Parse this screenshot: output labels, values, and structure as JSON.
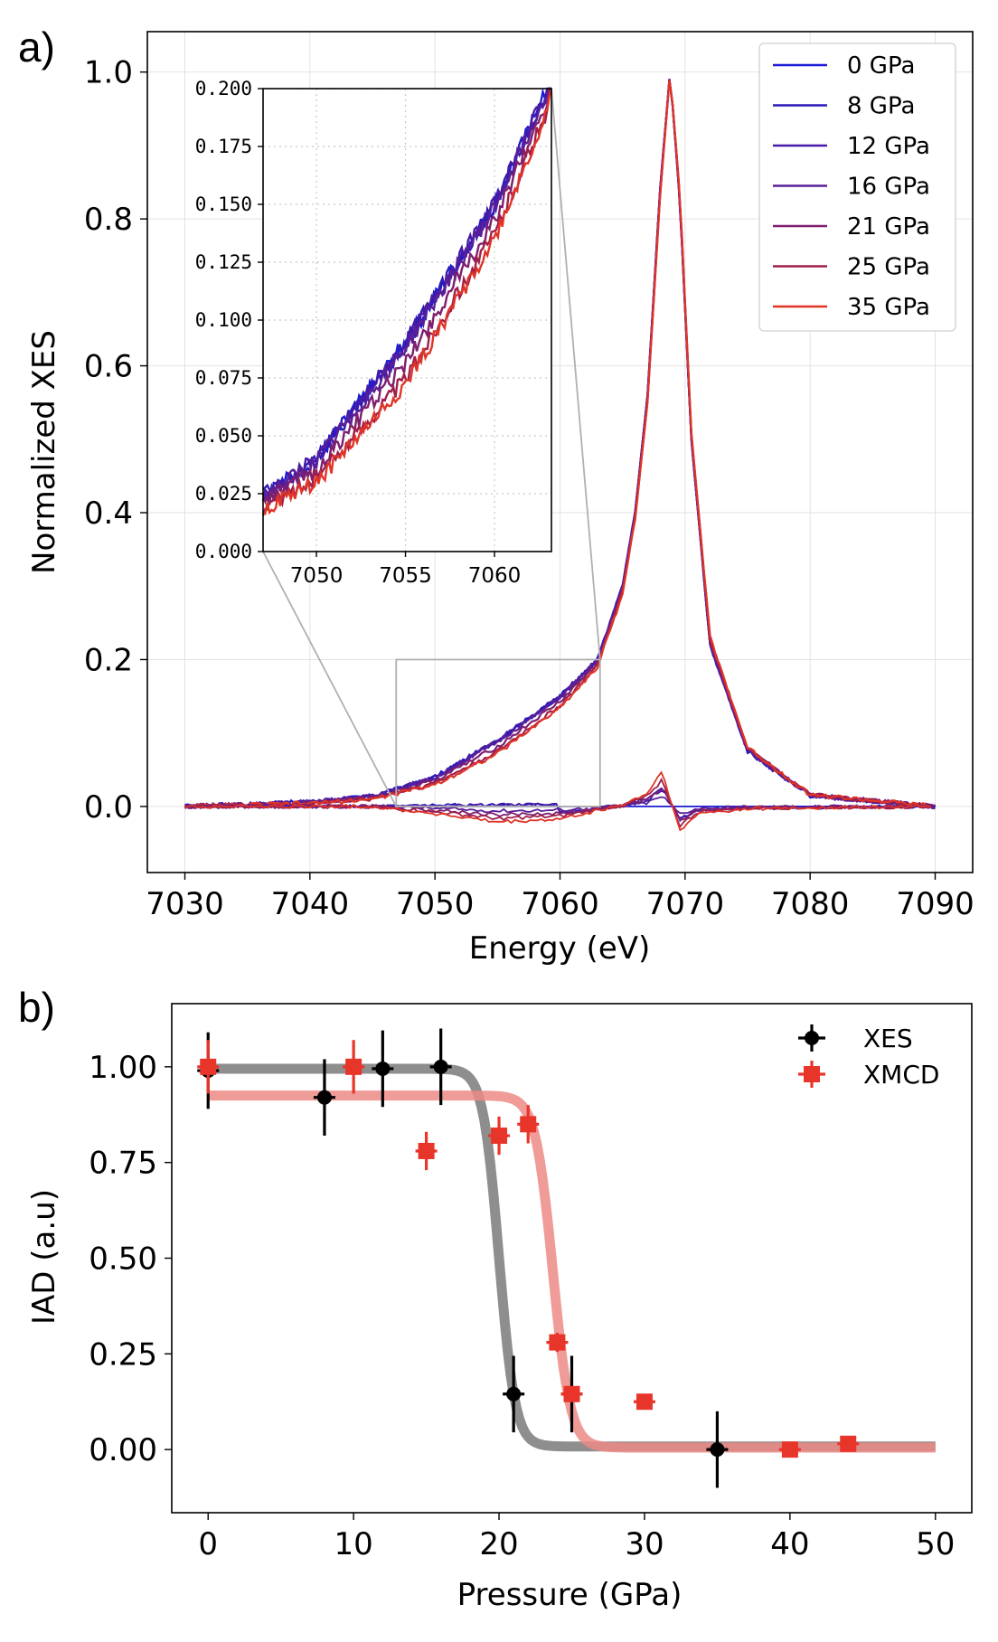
{
  "chart_data": [
    {
      "id": "a",
      "panel_label": "a)",
      "type": "line",
      "xlabel": "Energy (eV)",
      "ylabel": "Normalized XES",
      "xlim": [
        7027,
        7093
      ],
      "ylim": [
        -0.09,
        1.055
      ],
      "xticks": [
        7030,
        7040,
        7050,
        7060,
        7070,
        7080,
        7090
      ],
      "yticks": [
        0.0,
        0.2,
        0.4,
        0.6,
        0.8,
        1.0
      ],
      "ytick_labels": [
        "0.0",
        "0.2",
        "0.4",
        "0.6",
        "0.8",
        "1.0"
      ],
      "grid": true,
      "legend_position": "top-right",
      "series": [
        {
          "name": "0 GPa",
          "color": "#1a1ad6"
        },
        {
          "name": "8 GPa",
          "color": "#2d1ab8"
        },
        {
          "name": "12 GPa",
          "color": "#451aa8"
        },
        {
          "name": "16 GPa",
          "color": "#5a1f98"
        },
        {
          "name": "21 GPa",
          "color": "#7e1f6f"
        },
        {
          "name": "25 GPa",
          "color": "#a01f4a"
        },
        {
          "name": "35 GPa",
          "color": "#e03427"
        }
      ],
      "low_spin_profile": {
        "x": [
          7030,
          7040,
          7045,
          7047,
          7050,
          7055,
          7060,
          7063,
          7065,
          7066,
          7067,
          7068,
          7068.8,
          7069.6,
          7070.5,
          7072,
          7075,
          7080,
          7090
        ],
        "y": [
          0.0,
          0.006,
          0.014,
          0.024,
          0.04,
          0.09,
          0.15,
          0.2,
          0.3,
          0.4,
          0.56,
          0.84,
          1.0,
          0.82,
          0.5,
          0.22,
          0.075,
          0.015,
          0.0
        ]
      },
      "high_spin_profile": {
        "x": [
          7030,
          7040,
          7045,
          7047,
          7050,
          7055,
          7060,
          7063,
          7065,
          7066,
          7067,
          7068,
          7068.8,
          7069.6,
          7070.5,
          7072,
          7075,
          7080,
          7090
        ],
        "y": [
          0.0,
          0.004,
          0.01,
          0.018,
          0.03,
          0.072,
          0.135,
          0.19,
          0.29,
          0.39,
          0.55,
          0.83,
          1.0,
          0.83,
          0.51,
          0.23,
          0.08,
          0.016,
          0.0
        ]
      },
      "difference_profile": {
        "x": [
          7030,
          7045,
          7050,
          7055,
          7060,
          7065,
          7067,
          7068.2,
          7068.8,
          7069.6,
          7071,
          7075,
          7090
        ],
        "y": [
          0.0,
          0.0,
          -0.01,
          -0.022,
          -0.018,
          0.002,
          0.018,
          0.05,
          0.01,
          -0.035,
          -0.01,
          -0.003,
          0.0
        ]
      },
      "zoom_box": {
        "x": [
          7046.9,
          7063.2
        ],
        "y": [
          0.0,
          0.2
        ]
      },
      "inset": {
        "xlim": [
          7047,
          7063.2
        ],
        "ylim": [
          0.0,
          0.2
        ],
        "xticks": [
          7050,
          7055,
          7060
        ],
        "yticks": [
          0.0,
          0.025,
          0.05,
          0.075,
          0.1,
          0.125,
          0.15,
          0.175,
          0.2
        ],
        "ytick_labels": [
          "0.000",
          "0.025",
          "0.050",
          "0.075",
          "0.100",
          "0.125",
          "0.150",
          "0.175",
          "0.200"
        ],
        "grid": "dotted"
      }
    },
    {
      "id": "b",
      "panel_label": "b)",
      "type": "scatter",
      "xlabel": "Pressure (GPa)",
      "ylabel": "IAD (a.u)",
      "xlim": [
        -2.5,
        52.5
      ],
      "ylim": [
        -0.165,
        1.165
      ],
      "xticks": [
        0,
        10,
        20,
        30,
        40,
        50
      ],
      "yticks": [
        0.0,
        0.25,
        0.5,
        0.75,
        1.0
      ],
      "ytick_labels": [
        "0.00",
        "0.25",
        "0.50",
        "0.75",
        "1.00"
      ],
      "grid": false,
      "legend_position": "top-right",
      "series": [
        {
          "name": "XES",
          "color": "#000000",
          "marker": "circle",
          "x": [
            0,
            8,
            12,
            16,
            21,
            25,
            35
          ],
          "y": [
            0.99,
            0.92,
            0.995,
            1.0,
            0.145,
            0.145,
            0.0
          ],
          "yerr": [
            0.1,
            0.1,
            0.1,
            0.1,
            0.1,
            0.1,
            0.1
          ],
          "fit": {
            "top": 0.995,
            "bottom": 0.008,
            "center": 20.0,
            "width": 0.55,
            "color": "#7a7a7a"
          }
        },
        {
          "name": "XMCD",
          "color": "#e8352a",
          "marker": "square",
          "x": [
            0,
            10,
            15,
            20,
            22,
            24,
            25,
            30,
            40,
            44
          ],
          "y": [
            1.0,
            1.0,
            0.78,
            0.82,
            0.85,
            0.28,
            0.145,
            0.125,
            0.0,
            0.015
          ],
          "yerr": [
            0.07,
            0.07,
            0.05,
            0.05,
            0.05,
            0.025,
            0.02,
            0.02,
            0.015,
            0.015
          ],
          "fit": {
            "top": 0.925,
            "bottom": 0.005,
            "center": 23.7,
            "width": 0.6,
            "color": "#ec8a85"
          }
        }
      ]
    }
  ]
}
